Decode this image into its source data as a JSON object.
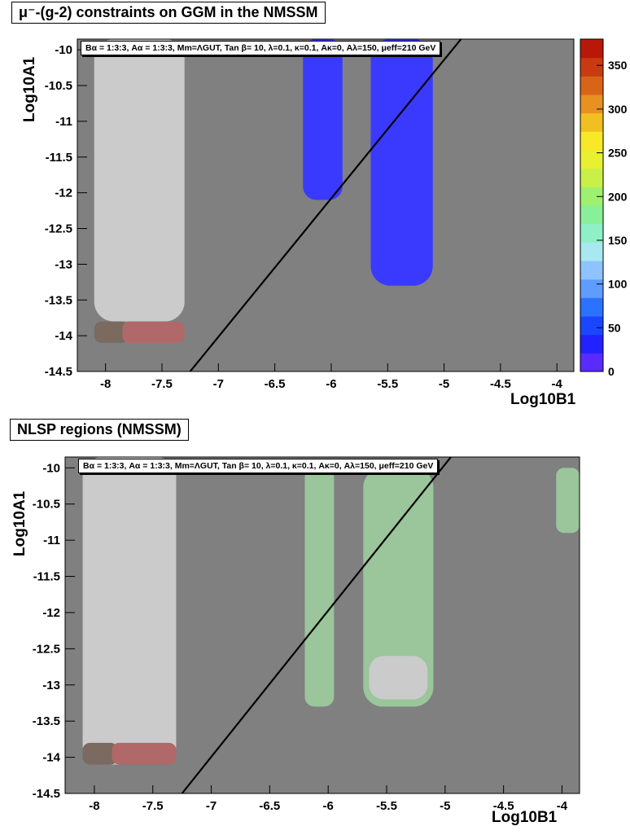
{
  "panels": {
    "top": {
      "title": "μ⁻-(g-2) constraints on GGM in the NMSSM",
      "params": "Bα = 1:3:3, Aα = 1:3:3, Mm=ΛGUT, Tan β= 10, λ=0.1, κ=0.1, Aκ=0, Aλ=150, μeff=210 GeV",
      "xlabel": "Log10B1",
      "ylabel": "Log10A1"
    },
    "bottom": {
      "title": "NLSP regions (NMSSM)",
      "params": "Bα = 1:3:3, Aα = 1:3:3, Mm=ΛGUT, Tan β= 10, λ=0.1, κ=0.1, Aκ=0, Aλ=150, μeff=210 GeV",
      "xlabel": "Log10B1",
      "ylabel": "Log10A1"
    }
  },
  "colors": {
    "background": "#808080",
    "excluded": "#cbcbcb",
    "brown": "#7a6a60",
    "rose": "#b06868",
    "blue": "#3a3aff",
    "green": "#9bc59b",
    "line": "#000000"
  },
  "chart_data": [
    {
      "type": "heatmap",
      "title": "μ⁻-(g-2) constraints on GGM in the NMSSM",
      "xlabel": "Log10B1",
      "ylabel": "Log10A1",
      "xlim": [
        -8.25,
        -3.85
      ],
      "ylim": [
        -14.5,
        -9.85
      ],
      "xticks": [
        "-8",
        "-7.5",
        "-7",
        "-6.5",
        "-6",
        "-5.5",
        "-5",
        "-4.5",
        "-4"
      ],
      "yticks": [
        "-10",
        "-10.5",
        "-11",
        "-11.5",
        "-12",
        "-12.5",
        "-13",
        "-13.5",
        "-14",
        "-14.5"
      ],
      "colorbar": {
        "ticks": [
          "0",
          "50",
          "100",
          "150",
          "200",
          "250",
          "300",
          "350"
        ],
        "range": [
          0,
          380
        ],
        "colors": [
          "#5a2bff",
          "#2222ff",
          "#1b46ff",
          "#2a72ff",
          "#5f9cff",
          "#8fc3ff",
          "#a8e8f0",
          "#8ff0c8",
          "#88f098",
          "#a0f070",
          "#c8f048",
          "#e8f030",
          "#f8e828",
          "#f0c020",
          "#e89020",
          "#d86418",
          "#c83a10",
          "#b81808"
        ]
      },
      "diagonal_line": {
        "x": [
          -7.25,
          -4.85
        ],
        "y": [
          -14.5,
          -9.85
        ]
      },
      "regions": [
        {
          "label": "excluded",
          "color": "excluded",
          "center": [
            -7.78,
            -11.7
          ],
          "extent": [
            [
              -8.1,
              -7.3
            ],
            [
              -13.8,
              -9.85
            ]
          ]
        },
        {
          "label": "excluded",
          "color": "excluded",
          "center": [
            -5.4,
            -12.95
          ],
          "extent": [
            [
              -5.6,
              -5.15
            ],
            [
              -13.2,
              -12.6
            ]
          ]
        },
        {
          "label": "brown",
          "color": "brown",
          "center": [
            -7.95,
            -13.95
          ],
          "extent": [
            [
              -8.1,
              -7.8
            ],
            [
              -14.1,
              -13.8
            ]
          ]
        },
        {
          "label": "rose",
          "color": "rose",
          "center": [
            -7.6,
            -13.95
          ],
          "extent": [
            [
              -7.85,
              -7.3
            ],
            [
              -14.1,
              -13.8
            ]
          ]
        },
        {
          "label": "blue",
          "color": "blue",
          "center": [
            -6.1,
            -11.5
          ],
          "extent": [
            [
              -6.25,
              -5.9
            ],
            [
              -12.1,
              -9.85
            ]
          ]
        },
        {
          "label": "blue",
          "color": "blue",
          "center": [
            -5.35,
            -11.5
          ],
          "extent": [
            [
              -5.65,
              -5.1
            ],
            [
              -13.3,
              -9.85
            ]
          ]
        }
      ]
    },
    {
      "type": "heatmap",
      "title": "NLSP regions (NMSSM)",
      "xlabel": "Log10B1",
      "ylabel": "Log10A1",
      "xlim": [
        -8.25,
        -3.85
      ],
      "ylim": [
        -14.5,
        -9.85
      ],
      "xticks": [
        "-8",
        "-7.5",
        "-7",
        "-6.5",
        "-6",
        "-5.5",
        "-5",
        "-4.5",
        "-4"
      ],
      "yticks": [
        "-10",
        "-10.5",
        "-11",
        "-11.5",
        "-12",
        "-12.5",
        "-13",
        "-13.5",
        "-14",
        "-14.5"
      ],
      "diagonal_line": {
        "x": [
          -7.25,
          -4.95
        ],
        "y": [
          -14.5,
          -9.85
        ]
      },
      "regions": [
        {
          "label": "excluded",
          "color": "excluded",
          "center": [
            -7.78,
            -11.9
          ],
          "extent": [
            [
              -8.1,
              -7.3
            ],
            [
              -14.1,
              -9.85
            ]
          ]
        },
        {
          "label": "green",
          "color": "green",
          "center": [
            -6.1,
            -11.6
          ],
          "extent": [
            [
              -6.2,
              -5.95
            ],
            [
              -13.3,
              -10.0
            ]
          ]
        },
        {
          "label": "green",
          "color": "green",
          "center": [
            -5.4,
            -11.5
          ],
          "extent": [
            [
              -5.7,
              -5.1
            ],
            [
              -13.3,
              -10.0
            ]
          ]
        },
        {
          "label": "excluded",
          "color": "excluded",
          "center": [
            -5.45,
            -12.95
          ],
          "extent": [
            [
              -5.65,
              -5.15
            ],
            [
              -13.2,
              -12.6
            ]
          ]
        },
        {
          "label": "green",
          "color": "green",
          "center": [
            -3.95,
            -10.5
          ],
          "extent": [
            [
              -4.05,
              -3.85
            ],
            [
              -10.9,
              -10.0
            ]
          ]
        },
        {
          "label": "brown",
          "color": "brown",
          "center": [
            -7.95,
            -13.95
          ],
          "extent": [
            [
              -8.1,
              -7.8
            ],
            [
              -14.1,
              -13.8
            ]
          ]
        },
        {
          "label": "rose",
          "color": "rose",
          "center": [
            -7.6,
            -13.95
          ],
          "extent": [
            [
              -7.85,
              -7.3
            ],
            [
              -14.1,
              -13.8
            ]
          ]
        }
      ]
    }
  ]
}
